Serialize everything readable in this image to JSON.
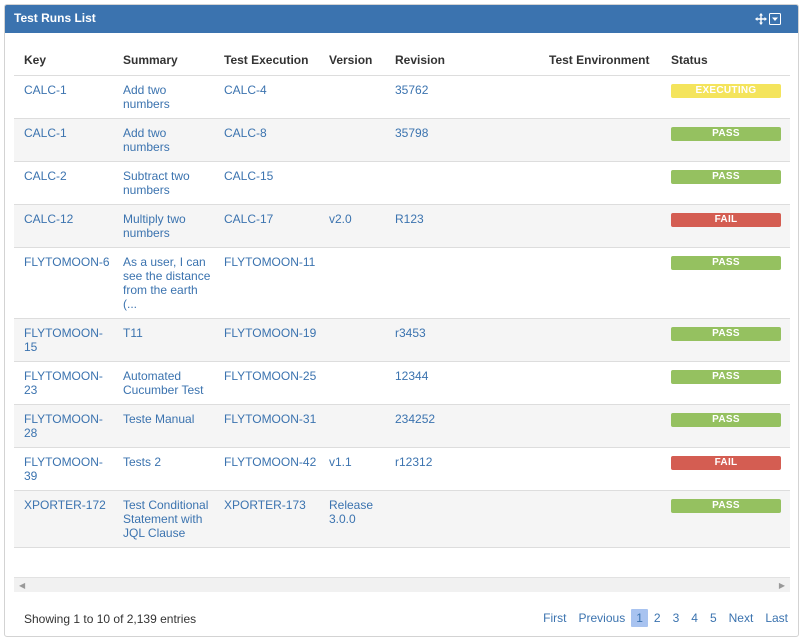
{
  "gadget": {
    "title": "Test Runs List",
    "icons": [
      "move-icon",
      "dropdown-menu-icon"
    ]
  },
  "table": {
    "headers": [
      "Key",
      "Summary",
      "Test Execution",
      "Version",
      "Revision",
      "Test Environment",
      "Status"
    ],
    "rows": [
      {
        "key": "CALC-1",
        "summary": "Add two numbers",
        "execution": "CALC-4",
        "version": "",
        "revision": "35762",
        "environment": "",
        "status": "EXECUTING",
        "status_color": "#f4e45c"
      },
      {
        "key": "CALC-1",
        "summary": "Add two numbers",
        "execution": "CALC-8",
        "version": "",
        "revision": "35798",
        "environment": "",
        "status": "PASS",
        "status_color": "#95c160"
      },
      {
        "key": "CALC-2",
        "summary": "Subtract two numbers",
        "execution": "CALC-15",
        "version": "",
        "revision": "",
        "environment": "",
        "status": "PASS",
        "status_color": "#95c160"
      },
      {
        "key": "CALC-12",
        "summary": "Multiply two numbers",
        "execution": "CALC-17",
        "version": "v2.0",
        "revision": "R123",
        "environment": "",
        "status": "FAIL",
        "status_color": "#d45d52"
      },
      {
        "key": "FLYTOMOON-6",
        "summary": "As a user, I can see the distance from the earth (...",
        "execution": "FLYTOMOON-11",
        "version": "",
        "revision": "",
        "environment": "",
        "status": "PASS",
        "status_color": "#95c160"
      },
      {
        "key": "FLYTOMOON-15",
        "summary": "T11",
        "execution": "FLYTOMOON-19",
        "version": "",
        "revision": "r3453",
        "environment": "",
        "status": "PASS",
        "status_color": "#95c160"
      },
      {
        "key": "FLYTOMOON-23",
        "summary": "Automated Cucumber Test",
        "execution": "FLYTOMOON-25",
        "version": "",
        "revision": "12344",
        "environment": "",
        "status": "PASS",
        "status_color": "#95c160"
      },
      {
        "key": "FLYTOMOON-28",
        "summary": "Teste Manual",
        "execution": "FLYTOMOON-31",
        "version": "",
        "revision": "234252",
        "environment": "",
        "status": "PASS",
        "status_color": "#95c160"
      },
      {
        "key": "FLYTOMOON-39",
        "summary": "Tests 2",
        "execution": "FLYTOMOON-42",
        "version": "v1.1",
        "revision": "r12312",
        "environment": "",
        "status": "FAIL",
        "status_color": "#d45d52"
      },
      {
        "key": "XPORTER-172",
        "summary": "Test Conditional Statement with JQL Clause",
        "execution": "XPORTER-173",
        "version": "Release 3.0.0",
        "revision": "",
        "environment": "",
        "status": "PASS",
        "status_color": "#95c160"
      }
    ]
  },
  "footer": {
    "info": "Showing 1 to 10 of 2,139 entries",
    "pager": {
      "first": "First",
      "previous": "Previous",
      "pages": [
        "1",
        "2",
        "3",
        "4",
        "5"
      ],
      "current": "1",
      "next": "Next",
      "last": "Last"
    }
  }
}
